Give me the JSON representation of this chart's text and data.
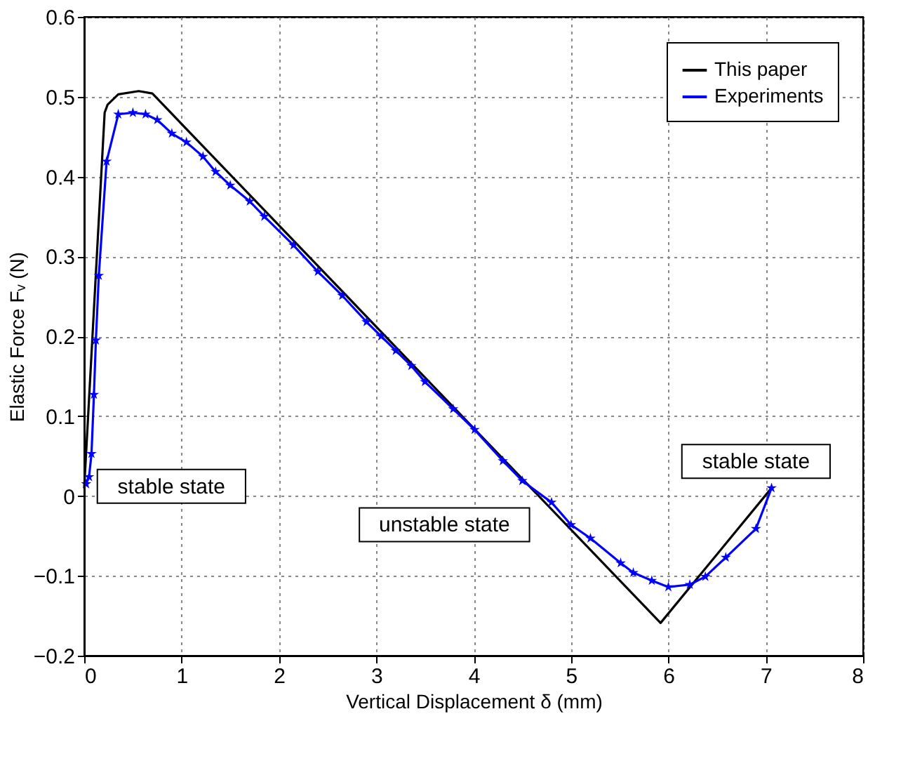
{
  "chart_data": {
    "type": "line",
    "xlabel": "Vertical Displacement δ (mm)",
    "ylabel": "Elastic Force Fᵥ (N)",
    "xlim": [
      0,
      8
    ],
    "xticks": [
      0,
      1,
      2,
      3,
      4,
      5,
      6,
      7,
      8
    ],
    "ylim": [
      -0.2,
      0.6
    ],
    "yticks": [
      -0.2,
      -0.1,
      0,
      0.1,
      0.2,
      0.3,
      0.4,
      0.5,
      0.6
    ],
    "grid": true,
    "legend": "top right",
    "series": [
      {
        "name": "This paper",
        "color": "#000000",
        "marker": "none",
        "x": [
          0,
          0.21,
          0.24,
          0.35,
          0.56,
          0.7,
          5.92,
          7.06
        ],
        "values": [
          0.01,
          0.48,
          0.49,
          0.503,
          0.507,
          0.504,
          -0.159,
          0.01
        ]
      },
      {
        "name": "Experiments",
        "color": "#0000ff",
        "marker": "star",
        "x": [
          0.02,
          0.05,
          0.075,
          0.1,
          0.12,
          0.15,
          0.23,
          0.35,
          0.5,
          0.63,
          0.75,
          0.9,
          1.05,
          1.22,
          1.35,
          1.5,
          1.7,
          1.85,
          2.15,
          2.4,
          2.65,
          2.9,
          3.05,
          3.2,
          3.36,
          3.5,
          3.79,
          4.01,
          4.3,
          4.5,
          4.8,
          5.0,
          5.2,
          5.51,
          5.64,
          5.83,
          6.0,
          6.22,
          6.38,
          6.59,
          6.9,
          7.06
        ],
        "values": [
          0.015,
          0.024,
          0.053,
          0.127,
          0.195,
          0.276,
          0.419,
          0.478,
          0.48,
          0.478,
          0.471,
          0.454,
          0.443,
          0.425,
          0.406,
          0.389,
          0.369,
          0.35,
          0.314,
          0.281,
          0.251,
          0.218,
          0.2,
          0.182,
          0.163,
          0.143,
          0.109,
          0.083,
          0.044,
          0.019,
          -0.008,
          -0.036,
          -0.053,
          -0.084,
          -0.096,
          -0.106,
          -0.114,
          -0.111,
          -0.101,
          -0.077,
          -0.041,
          0.01
        ]
      }
    ],
    "annotations": [
      "stable state",
      "unstable state",
      "stable state"
    ]
  }
}
